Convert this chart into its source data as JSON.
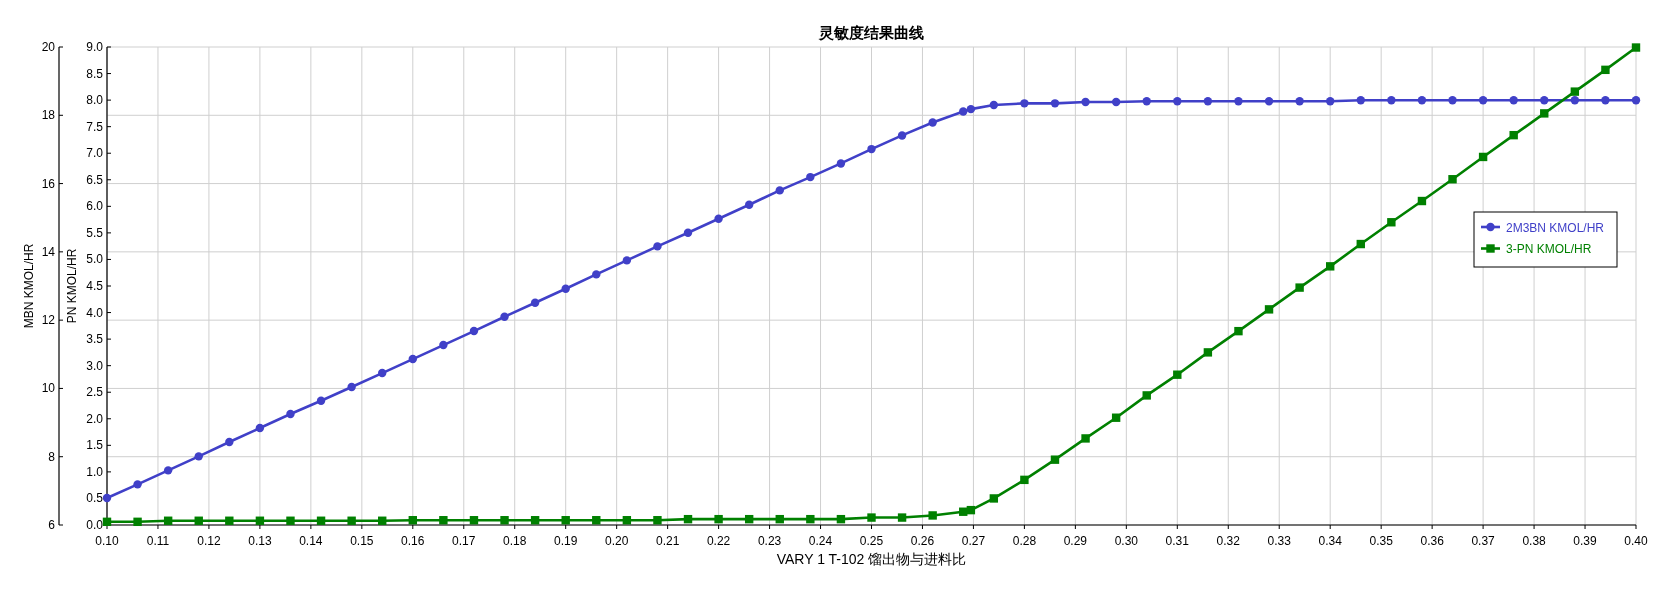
{
  "chart_data": {
    "type": "line",
    "title": "灵敏度结果曲线",
    "xlabel": "VARY 1 T-102 馏出物与进料比",
    "ylabel": "MBN KMOL/HR",
    "y2label": "PN KMOL/HR",
    "x": [
      0.1,
      0.106,
      0.112,
      0.118,
      0.124,
      0.13,
      0.136,
      0.142,
      0.148,
      0.154,
      0.16,
      0.166,
      0.172,
      0.178,
      0.184,
      0.19,
      0.196,
      0.202,
      0.208,
      0.214,
      0.22,
      0.226,
      0.232,
      0.238,
      0.244,
      0.25,
      0.256,
      0.262,
      0.268,
      0.2695,
      0.274,
      0.28,
      0.286,
      0.292,
      0.298,
      0.304,
      0.31,
      0.316,
      0.322,
      0.328,
      0.334,
      0.34,
      0.346,
      0.352,
      0.358,
      0.364,
      0.37,
      0.376,
      0.382,
      0.388,
      0.394,
      0.4
    ],
    "xlim": [
      0.1,
      0.4
    ],
    "xticks": [
      {
        "value": 0.1,
        "label": "0.10"
      },
      0.11,
      0.12,
      0.13,
      0.14,
      0.15,
      0.16,
      0.17,
      0.18,
      0.19,
      {
        "value": 0.2,
        "label": "0.20"
      },
      0.21,
      0.22,
      0.23,
      0.24,
      0.25,
      0.26,
      0.27,
      0.28,
      0.29,
      {
        "value": 0.3,
        "label": "0.30"
      },
      0.31,
      0.32,
      0.33,
      0.34,
      0.35,
      0.36,
      0.37,
      0.38,
      0.39,
      {
        "value": 0.4,
        "label": "0.40"
      }
    ],
    "ylim": [
      6,
      20
    ],
    "yticks": [
      6,
      8,
      10,
      12,
      14,
      16,
      18,
      20
    ],
    "y2lim": [
      0,
      9
    ],
    "y2ticks": [
      {
        "value": 0,
        "label": "0.0"
      },
      0.5,
      {
        "value": 1,
        "label": "1.0"
      },
      1.5,
      {
        "value": 2,
        "label": "2.0"
      },
      2.5,
      {
        "value": 3,
        "label": "3.0"
      },
      3.5,
      {
        "value": 4,
        "label": "4.0"
      },
      4.5,
      {
        "value": 5,
        "label": "5.0"
      },
      5.5,
      {
        "value": 6,
        "label": "6.0"
      },
      6.5,
      {
        "value": 7,
        "label": "7.0"
      },
      7.5,
      {
        "value": 8,
        "label": "8.0"
      },
      8.5,
      {
        "value": 9,
        "label": "9.0"
      }
    ],
    "grid": true,
    "legend": "right",
    "series": [
      {
        "name": "2M3BN KMOL/HR",
        "color": "#4040c8",
        "marker": "circle",
        "values": [
          6.79,
          7.19,
          7.6,
          8.01,
          8.43,
          8.84,
          9.25,
          9.64,
          10.04,
          10.45,
          10.86,
          11.27,
          11.68,
          12.1,
          12.51,
          12.92,
          13.34,
          13.75,
          14.16,
          14.56,
          14.97,
          15.38,
          15.8,
          16.19,
          16.59,
          17.01,
          17.41,
          17.79,
          18.11,
          18.18,
          18.3,
          18.35,
          18.35,
          18.39,
          18.39,
          18.41,
          18.41,
          18.41,
          18.41,
          18.41,
          18.41,
          18.41,
          18.44,
          18.44,
          18.44,
          18.44,
          18.44,
          18.44,
          18.44,
          18.44,
          18.44,
          18.44
        ]
      },
      {
        "name": "3-PN KMOL/HR",
        "color": "#008000",
        "marker": "square",
        "axis": "y2",
        "values": [
          0.06,
          0.06,
          0.08,
          0.08,
          0.08,
          0.08,
          0.08,
          0.08,
          0.08,
          0.08,
          0.09,
          0.09,
          0.09,
          0.09,
          0.09,
          0.09,
          0.09,
          0.09,
          0.09,
          0.11,
          0.11,
          0.11,
          0.11,
          0.11,
          0.11,
          0.14,
          0.14,
          0.18,
          0.25,
          0.28,
          0.5,
          0.85,
          1.23,
          1.63,
          2.02,
          2.44,
          2.83,
          3.25,
          3.65,
          4.06,
          4.47,
          4.87,
          5.29,
          5.7,
          6.1,
          6.51,
          6.93,
          7.34,
          7.75,
          8.16,
          8.57,
          8.99
        ]
      }
    ]
  }
}
